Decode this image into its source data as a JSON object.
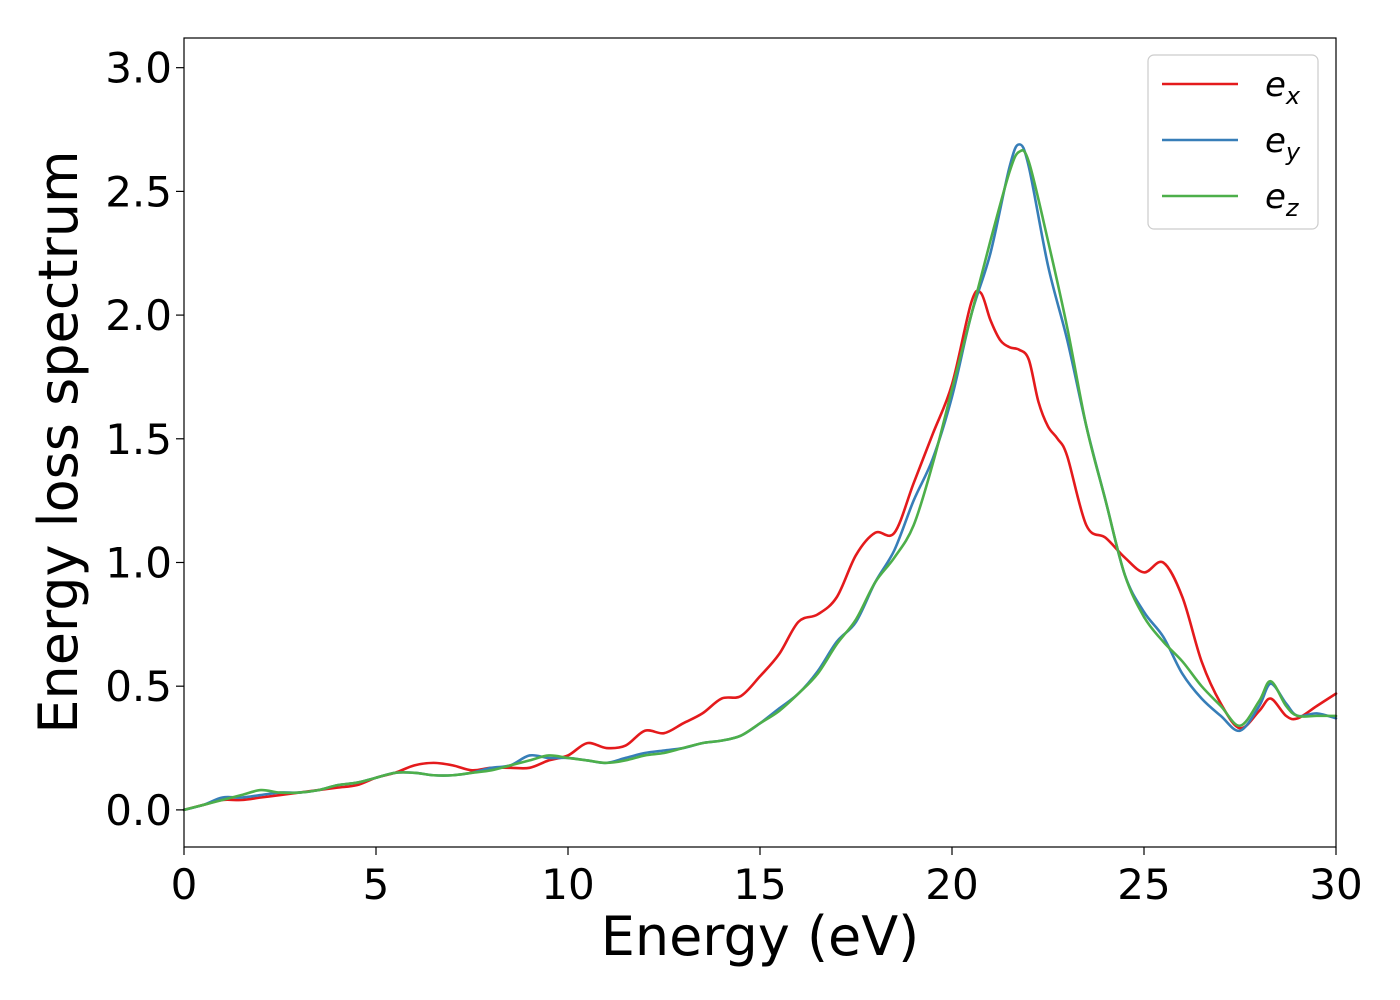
{
  "chart_data": {
    "type": "line",
    "title": "",
    "xlabel": "Energy (eV)",
    "ylabel": "Energy loss spectrum",
    "xlim": [
      0,
      30
    ],
    "ylim": [
      -0.15,
      3.12
    ],
    "xticks": [
      0,
      5,
      10,
      15,
      20,
      25,
      30
    ],
    "xtick_labels": [
      "0",
      "5",
      "10",
      "15",
      "20",
      "25",
      "30"
    ],
    "yticks": [
      0.0,
      0.5,
      1.0,
      1.5,
      2.0,
      2.5,
      3.0
    ],
    "ytick_labels": [
      "0.0",
      "0.5",
      "1.0",
      "1.5",
      "2.0",
      "2.5",
      "3.0"
    ],
    "grid": false,
    "legend_position": "top-right",
    "series": [
      {
        "name": "e",
        "subscript": "x",
        "color": "#e41a1c",
        "x": [
          0,
          0.5,
          1,
          1.5,
          2,
          2.5,
          3,
          3.5,
          4,
          4.5,
          5,
          5.5,
          6,
          6.5,
          7,
          7.5,
          8,
          8.5,
          9,
          9.5,
          10,
          10.5,
          11,
          11.5,
          12,
          12.5,
          13,
          13.5,
          14,
          14.5,
          15,
          15.5,
          16,
          16.5,
          17,
          17.5,
          18,
          18.5,
          19,
          19.5,
          20,
          20.5,
          20.75,
          21,
          21.25,
          21.5,
          21.75,
          22,
          22.25,
          22.5,
          22.75,
          23,
          23.5,
          24,
          24.5,
          25,
          25.5,
          26,
          26.5,
          27,
          27.5,
          28,
          28.3,
          28.7,
          29,
          29.5,
          30
        ],
        "y": [
          0.0,
          0.02,
          0.04,
          0.04,
          0.05,
          0.06,
          0.07,
          0.08,
          0.09,
          0.1,
          0.13,
          0.15,
          0.18,
          0.19,
          0.18,
          0.16,
          0.17,
          0.17,
          0.17,
          0.2,
          0.22,
          0.27,
          0.25,
          0.26,
          0.32,
          0.31,
          0.35,
          0.39,
          0.45,
          0.46,
          0.54,
          0.63,
          0.76,
          0.79,
          0.86,
          1.03,
          1.12,
          1.12,
          1.32,
          1.52,
          1.72,
          2.05,
          2.09,
          1.98,
          1.9,
          1.87,
          1.86,
          1.82,
          1.65,
          1.55,
          1.5,
          1.43,
          1.15,
          1.1,
          1.02,
          0.96,
          1.0,
          0.86,
          0.6,
          0.43,
          0.33,
          0.4,
          0.45,
          0.38,
          0.37,
          0.42,
          0.47
        ]
      },
      {
        "name": "e",
        "subscript": "y",
        "color": "#377eb8",
        "x": [
          0,
          0.5,
          1,
          1.5,
          2,
          2.5,
          3,
          3.5,
          4,
          4.5,
          5,
          5.5,
          6,
          6.5,
          7,
          7.5,
          8,
          8.5,
          9,
          9.5,
          10,
          10.5,
          11,
          11.5,
          12,
          12.5,
          13,
          13.5,
          14,
          14.5,
          15,
          15.5,
          16,
          16.5,
          17,
          17.5,
          18,
          18.5,
          19,
          19.5,
          20,
          20.5,
          21,
          21.5,
          21.75,
          22,
          22.5,
          23,
          23.5,
          24,
          24.5,
          25,
          25.5,
          26,
          26.5,
          27,
          27.5,
          28,
          28.3,
          28.7,
          29,
          29.5,
          30
        ],
        "y": [
          0.0,
          0.02,
          0.05,
          0.05,
          0.06,
          0.07,
          0.07,
          0.08,
          0.1,
          0.11,
          0.13,
          0.15,
          0.15,
          0.14,
          0.14,
          0.15,
          0.17,
          0.18,
          0.22,
          0.21,
          0.21,
          0.2,
          0.19,
          0.21,
          0.23,
          0.24,
          0.25,
          0.27,
          0.28,
          0.3,
          0.35,
          0.41,
          0.47,
          0.56,
          0.68,
          0.76,
          0.92,
          1.05,
          1.25,
          1.42,
          1.67,
          2.0,
          2.25,
          2.6,
          2.69,
          2.6,
          2.2,
          1.9,
          1.55,
          1.25,
          0.95,
          0.8,
          0.7,
          0.55,
          0.45,
          0.38,
          0.32,
          0.42,
          0.51,
          0.43,
          0.38,
          0.39,
          0.37
        ]
      },
      {
        "name": "e",
        "subscript": "z",
        "color": "#4daf4a",
        "x": [
          0,
          0.5,
          1,
          1.5,
          2,
          2.5,
          3,
          3.5,
          4,
          4.5,
          5,
          5.5,
          6,
          6.5,
          7,
          7.5,
          8,
          8.5,
          9,
          9.5,
          10,
          10.5,
          11,
          11.5,
          12,
          12.5,
          13,
          13.5,
          14,
          14.5,
          15,
          15.5,
          16,
          16.5,
          17,
          17.5,
          18,
          18.5,
          19,
          19.5,
          20,
          20.5,
          21,
          21.5,
          21.75,
          22,
          22.5,
          23,
          23.5,
          24,
          24.5,
          25,
          25.5,
          26,
          26.5,
          27,
          27.5,
          28,
          28.3,
          28.7,
          29,
          29.5,
          30
        ],
        "y": [
          0.0,
          0.02,
          0.04,
          0.06,
          0.08,
          0.07,
          0.07,
          0.08,
          0.1,
          0.11,
          0.13,
          0.15,
          0.15,
          0.14,
          0.14,
          0.15,
          0.16,
          0.18,
          0.2,
          0.22,
          0.21,
          0.2,
          0.19,
          0.2,
          0.22,
          0.23,
          0.25,
          0.27,
          0.28,
          0.3,
          0.35,
          0.4,
          0.47,
          0.55,
          0.67,
          0.77,
          0.92,
          1.02,
          1.15,
          1.4,
          1.7,
          2.0,
          2.3,
          2.58,
          2.66,
          2.62,
          2.3,
          1.95,
          1.55,
          1.25,
          0.95,
          0.78,
          0.68,
          0.6,
          0.5,
          0.42,
          0.34,
          0.44,
          0.52,
          0.42,
          0.38,
          0.38,
          0.38
        ]
      }
    ]
  }
}
